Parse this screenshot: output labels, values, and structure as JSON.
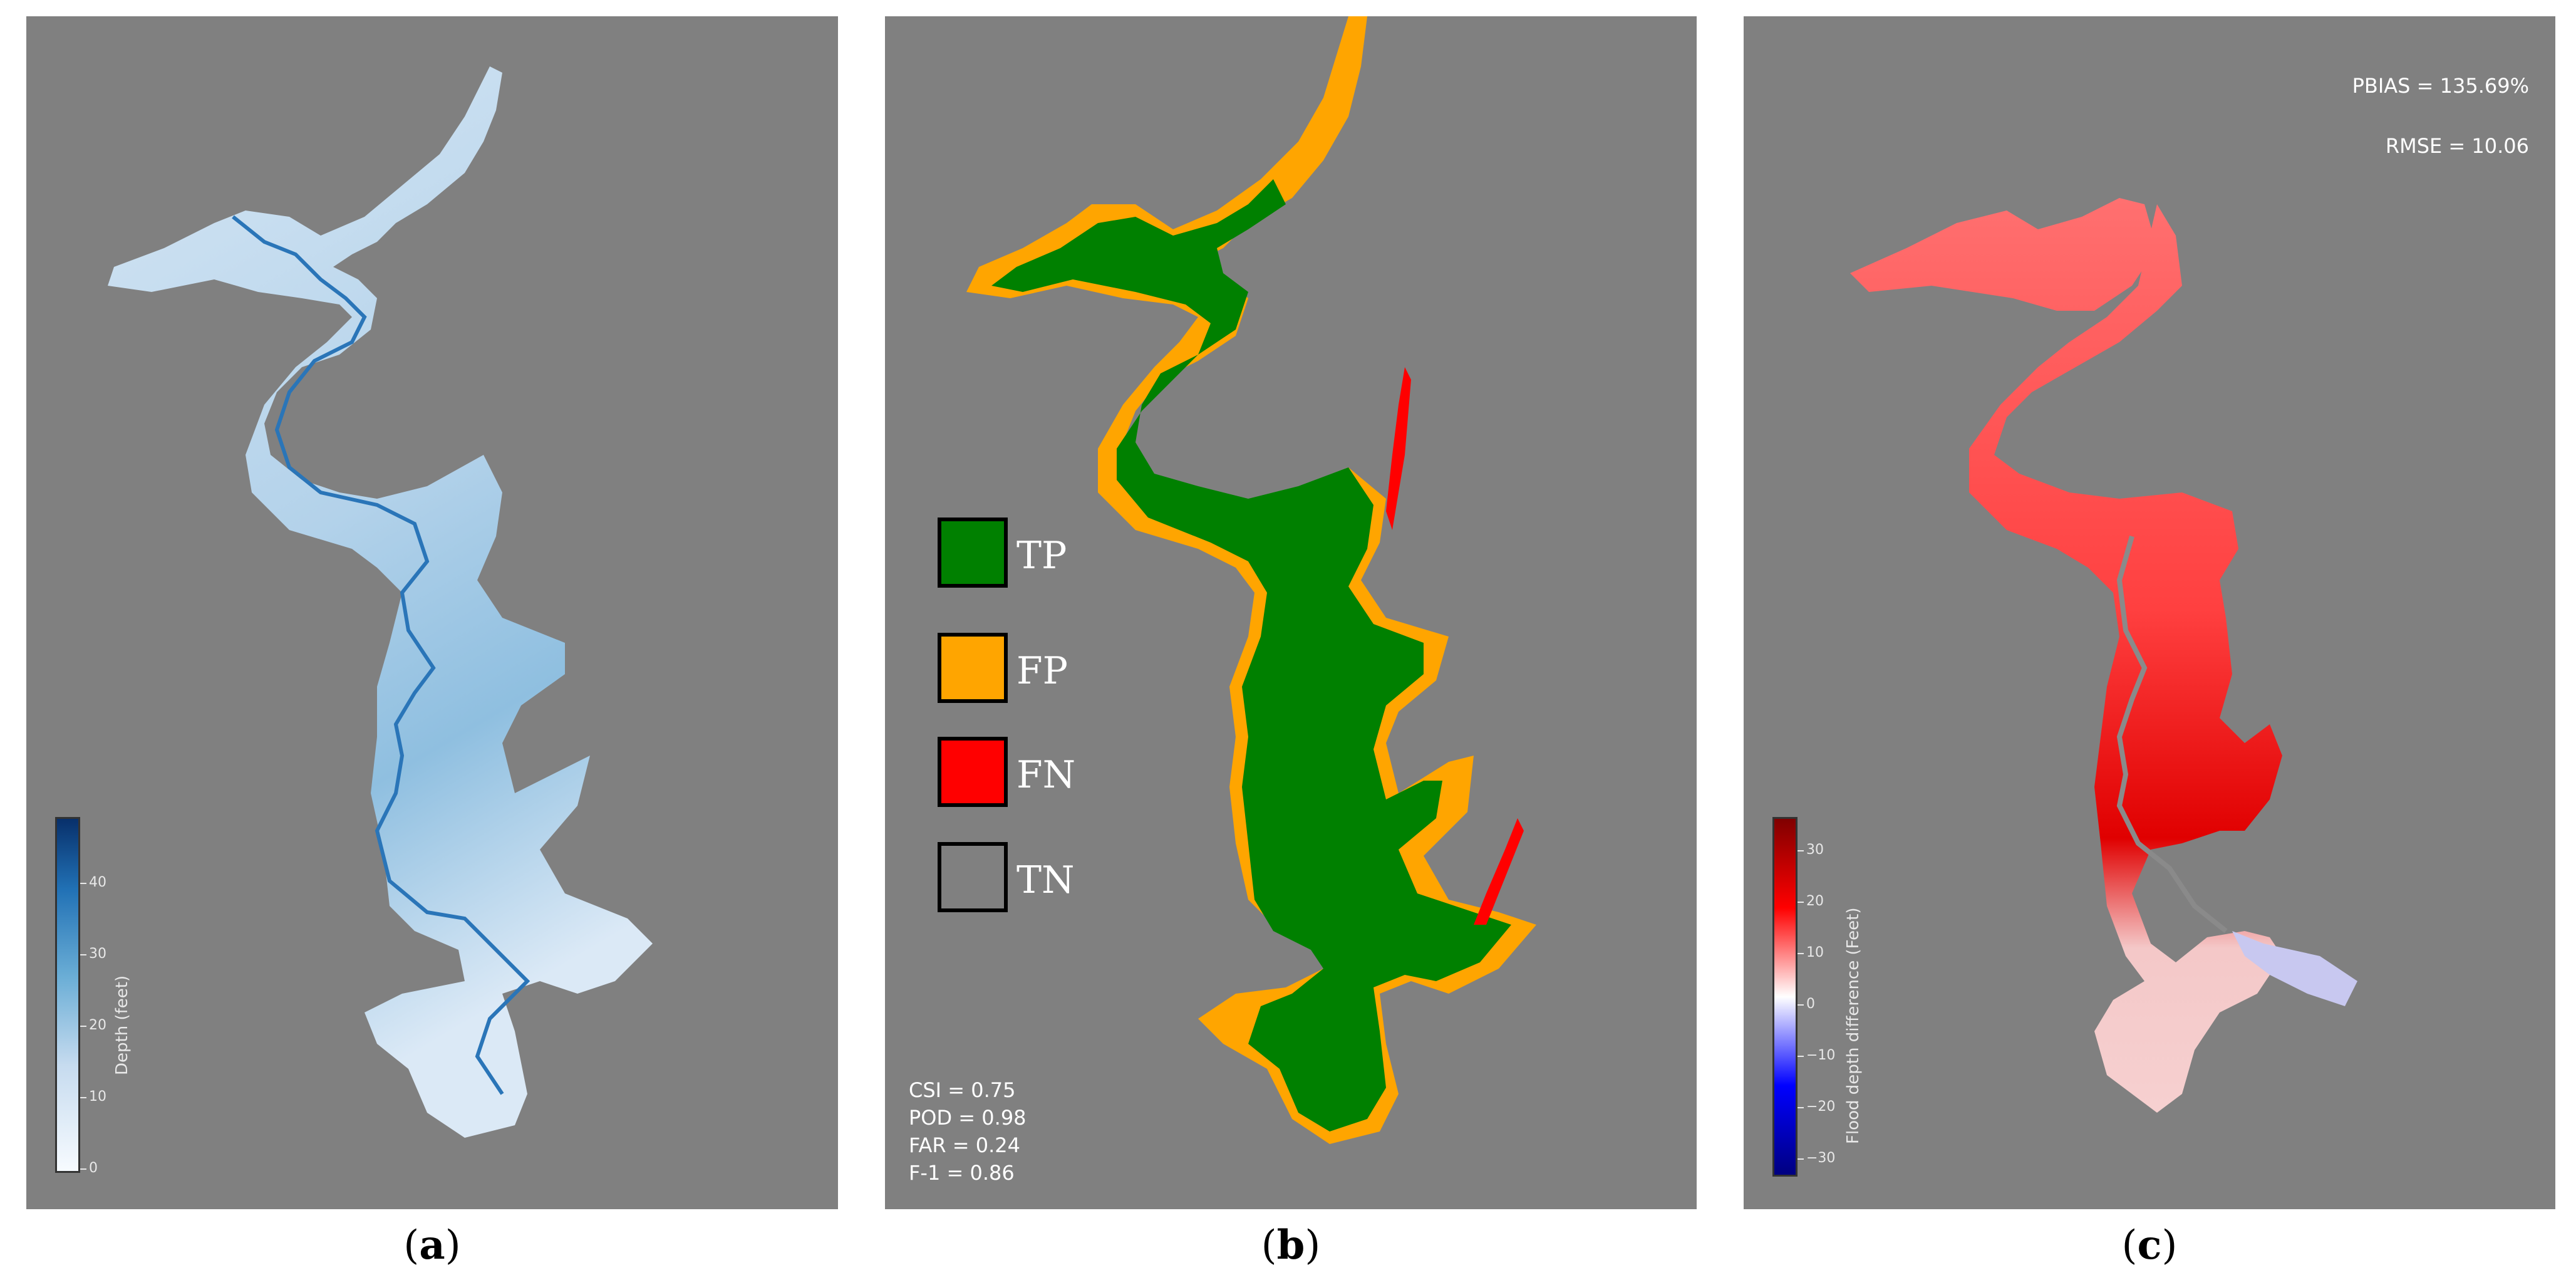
{
  "panels": {
    "a": {
      "caption": "a",
      "colorbar": {
        "label": "Depth (feet)",
        "ticks": [
          "0",
          "10",
          "20",
          "30",
          "40"
        ],
        "colormap": [
          "#f7fbff",
          "#c6dbef",
          "#6baed6",
          "#2171b5",
          "#08306b"
        ]
      }
    },
    "b": {
      "caption": "b",
      "legend": [
        {
          "label": "TP",
          "color": "#008000"
        },
        {
          "label": "FP",
          "color": "#ffa500"
        },
        {
          "label": "FN",
          "color": "#ff0000"
        },
        {
          "label": "TN",
          "color": "#808080"
        }
      ],
      "metrics": [
        "CSI = 0.75",
        "POD = 0.98",
        "FAR = 0.24",
        "F-1 = 0.86"
      ]
    },
    "c": {
      "caption": "c",
      "stats": [
        "PBIAS = 135.69%",
        "RMSE = 10.06"
      ],
      "colorbar": {
        "label": "Flood depth difference (Feet)",
        "ticks": [
          "−30",
          "−20",
          "−10",
          "0",
          "10",
          "20",
          "30"
        ],
        "colormap": [
          "#000080",
          "#0000ff",
          "#ffffff",
          "#ff0000",
          "#800000"
        ]
      }
    }
  },
  "background_color": "#808080"
}
